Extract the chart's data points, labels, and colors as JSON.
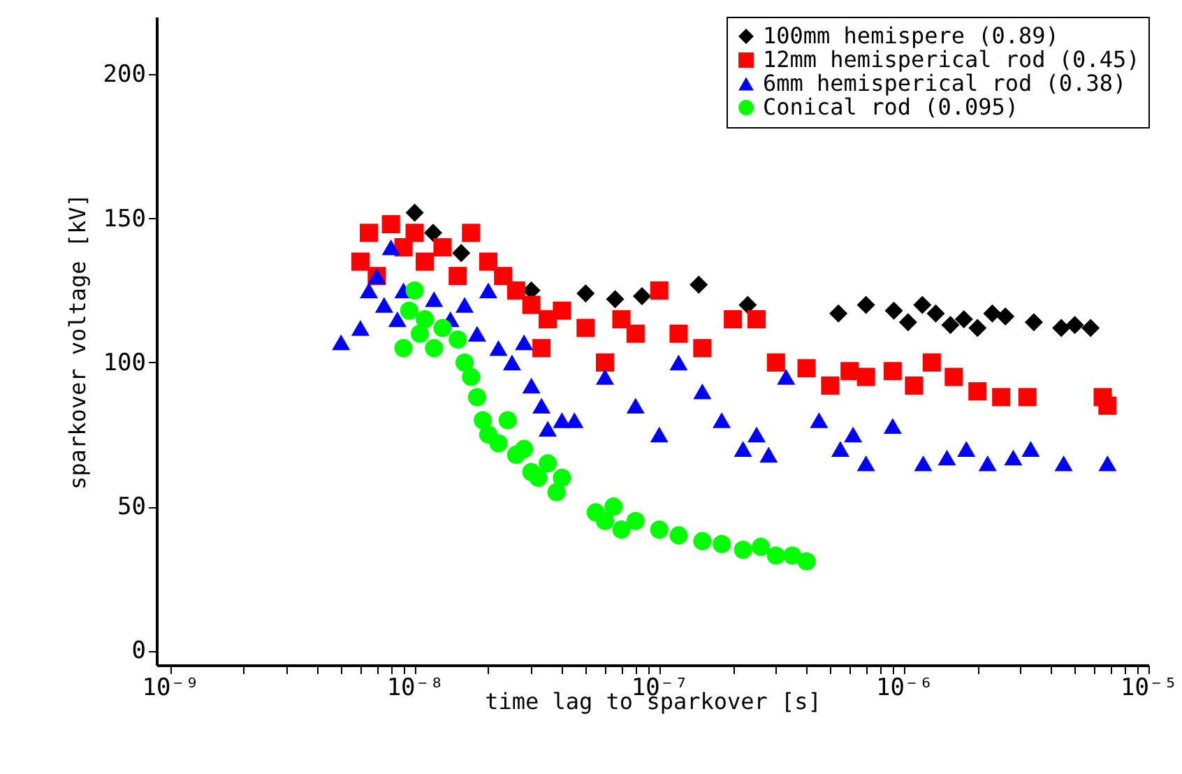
{
  "chart_data": {
    "type": "scatter",
    "xlabel": "time lag to sparkover [s]",
    "ylabel": "sparkover voltage [kV]",
    "log": "x",
    "grid": false,
    "legend": "top right",
    "xlim": [
      8.8e-10,
      1e-05
    ],
    "ylim": [
      -5,
      220
    ],
    "xticks": [
      {
        "value": 1e-09,
        "label": "10⁻⁹"
      },
      {
        "value": 2e-09,
        "label": null
      },
      {
        "value": 3e-09,
        "label": null
      },
      {
        "value": 4e-09,
        "label": null
      },
      {
        "value": 5e-09,
        "label": null
      },
      {
        "value": 6e-09,
        "label": null
      },
      {
        "value": 7e-09,
        "label": null
      },
      {
        "value": 8e-09,
        "label": null
      },
      {
        "value": 9e-09,
        "label": null
      },
      {
        "value": 1e-08,
        "label": "10⁻⁸"
      },
      {
        "value": 2e-08,
        "label": null
      },
      {
        "value": 3e-08,
        "label": null
      },
      {
        "value": 4e-08,
        "label": null
      },
      {
        "value": 5e-08,
        "label": null
      },
      {
        "value": 6e-08,
        "label": null
      },
      {
        "value": 7e-08,
        "label": null
      },
      {
        "value": 8e-08,
        "label": null
      },
      {
        "value": 9e-08,
        "label": null
      },
      {
        "value": 1e-07,
        "label": "10⁻⁷"
      },
      {
        "value": 2e-07,
        "label": null
      },
      {
        "value": 3e-07,
        "label": null
      },
      {
        "value": 4e-07,
        "label": null
      },
      {
        "value": 5e-07,
        "label": null
      },
      {
        "value": 6e-07,
        "label": null
      },
      {
        "value": 7e-07,
        "label": null
      },
      {
        "value": 8e-07,
        "label": null
      },
      {
        "value": 9e-07,
        "label": null
      },
      {
        "value": 1e-06,
        "label": "10⁻⁶"
      },
      {
        "value": 2e-06,
        "label": null
      },
      {
        "value": 3e-06,
        "label": null
      },
      {
        "value": 4e-06,
        "label": null
      },
      {
        "value": 5e-06,
        "label": null
      },
      {
        "value": 6e-06,
        "label": null
      },
      {
        "value": 7e-06,
        "label": null
      },
      {
        "value": 8e-06,
        "label": null
      },
      {
        "value": 9e-06,
        "label": null
      },
      {
        "value": 1e-05,
        "label": "10⁻⁵"
      }
    ],
    "yticks": [
      0,
      50,
      100,
      150,
      200
    ],
    "series": [
      {
        "name": "100mm hemispere (0.89)",
        "color": "#000000",
        "marker": "diamond",
        "x": [
          1e-08,
          1.19e-08,
          1.55e-08,
          3e-08,
          5e-08,
          6.6e-08,
          8.5e-08,
          1.45e-07,
          2.3e-07,
          5.4e-07,
          7e-07,
          9.1e-07,
          1.04e-06,
          1.19e-06,
          1.35e-06,
          1.55e-06,
          1.76e-06,
          2e-06,
          2.3e-06,
          2.6e-06,
          3.4e-06,
          4.4e-06,
          5e-06,
          5.8e-06
        ],
        "values": [
          152,
          145,
          138,
          125,
          124,
          122,
          123,
          127,
          120,
          117,
          120,
          118,
          114,
          120,
          117,
          113,
          115,
          112,
          117,
          116,
          114,
          112,
          113,
          112
        ]
      },
      {
        "name": "12mm hemisperical rod (0.45)",
        "color": "#ff0000",
        "marker": "square",
        "x": [
          6e-09,
          6.5e-09,
          7e-09,
          8e-09,
          9e-09,
          1e-08,
          1.1e-08,
          1.3e-08,
          1.5e-08,
          1.7e-08,
          2e-08,
          2.3e-08,
          2.6e-08,
          3e-08,
          3.3e-08,
          3.5e-08,
          4e-08,
          5e-08,
          6e-08,
          7e-08,
          8e-08,
          1e-07,
          1.2e-07,
          1.5e-07,
          2e-07,
          2.5e-07,
          3e-07,
          4e-07,
          5e-07,
          6e-07,
          7e-07,
          9e-07,
          1.1e-06,
          1.3e-06,
          1.6e-06,
          2e-06,
          2.5e-06,
          3.2e-06,
          6.5e-06,
          6.8e-06
        ],
        "values": [
          135,
          145,
          130,
          148,
          140,
          145,
          135,
          140,
          130,
          145,
          135,
          130,
          125,
          120,
          105,
          115,
          118,
          112,
          100,
          115,
          110,
          125,
          110,
          105,
          115,
          115,
          100,
          98,
          92,
          97,
          95,
          97,
          92,
          100,
          95,
          90,
          88,
          88,
          88,
          85
        ]
      },
      {
        "name": "6mm hemisperical rod (0.38)",
        "color": "#0000ff",
        "marker": "triangle",
        "x": [
          5e-09,
          6e-09,
          6.5e-09,
          7e-09,
          7.5e-09,
          8e-09,
          8.5e-09,
          9e-09,
          1.2e-08,
          1.4e-08,
          1.6e-08,
          1.8e-08,
          2e-08,
          2.2e-08,
          2.5e-08,
          2.8e-08,
          3e-08,
          3.3e-08,
          3.5e-08,
          4e-08,
          4.5e-08,
          6e-08,
          8e-08,
          1e-07,
          1.2e-07,
          1.5e-07,
          1.8e-07,
          2.2e-07,
          2.5e-07,
          2.8e-07,
          3.3e-07,
          4.5e-07,
          5.5e-07,
          6.2e-07,
          7e-07,
          9e-07,
          1.2e-06,
          1.5e-06,
          1.8e-06,
          2.2e-06,
          2.8e-06,
          3.3e-06,
          4.5e-06,
          6.8e-06
        ],
        "values": [
          107,
          112,
          125,
          130,
          120,
          140,
          115,
          125,
          122,
          115,
          120,
          110,
          125,
          105,
          100,
          107,
          92,
          85,
          77,
          80,
          80,
          95,
          85,
          75,
          100,
          90,
          80,
          70,
          75,
          68,
          95,
          80,
          70,
          75,
          65,
          78,
          65,
          67,
          70,
          65,
          67,
          70,
          65,
          65
        ]
      },
      {
        "name": "Conical rod (0.095)",
        "color": "#00ff00",
        "marker": "circle",
        "x": [
          9e-09,
          9.5e-09,
          1e-08,
          1.05e-08,
          1.1e-08,
          1.2e-08,
          1.3e-08,
          1.5e-08,
          1.6e-08,
          1.7e-08,
          1.8e-08,
          1.9e-08,
          2e-08,
          2.2e-08,
          2.4e-08,
          2.6e-08,
          2.8e-08,
          3e-08,
          3.2e-08,
          3.5e-08,
          3.8e-08,
          4e-08,
          5.5e-08,
          6e-08,
          6.5e-08,
          7e-08,
          8e-08,
          1e-07,
          1.2e-07,
          1.5e-07,
          1.8e-07,
          2.2e-07,
          2.6e-07,
          3e-07,
          3.5e-07,
          4e-07
        ],
        "values": [
          105,
          118,
          125,
          110,
          115,
          105,
          112,
          108,
          100,
          95,
          88,
          80,
          75,
          72,
          80,
          68,
          70,
          62,
          60,
          65,
          55,
          60,
          48,
          45,
          50,
          42,
          45,
          42,
          40,
          38,
          37,
          35,
          36,
          33,
          33,
          31
        ]
      }
    ]
  }
}
